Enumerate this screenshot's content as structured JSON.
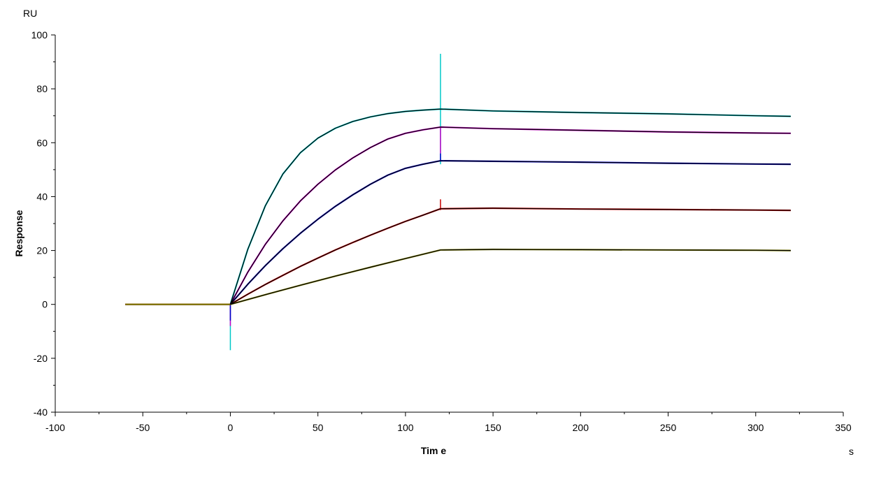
{
  "chart_data": {
    "type": "line",
    "title": "",
    "xlabel": "Tim e",
    "ylabel": "Response",
    "x_unit": "s",
    "y_unit": "RU",
    "xlim": [
      -100,
      350
    ],
    "ylim": [
      -40,
      100
    ],
    "x_ticks": [
      -100,
      -50,
      0,
      50,
      100,
      150,
      200,
      250,
      300,
      350
    ],
    "y_ticks": [
      -40,
      -20,
      0,
      20,
      40,
      60,
      80,
      100
    ],
    "x_minor_step": 25,
    "y_minor_step": 10,
    "grid": false,
    "legend": "none",
    "association_start": 0,
    "dissociation_start": 120,
    "series": [
      {
        "color": "#00c8c8",
        "x": [
          -60,
          0,
          10,
          20,
          30,
          40,
          50,
          60,
          70,
          80,
          90,
          100,
          110,
          120,
          150,
          200,
          250,
          300,
          320
        ],
        "y": [
          0,
          0,
          20.5,
          36.6,
          48.4,
          56.3,
          61.7,
          65.4,
          67.9,
          69.6,
          70.8,
          71.6,
          72.1,
          72.5,
          71.8,
          71.2,
          70.7,
          70.0,
          69.8
        ],
        "spikes": [
          {
            "x": 0,
            "min": -17,
            "max": 0
          },
          {
            "x": 120,
            "min": 52,
            "max": 93
          }
        ]
      },
      {
        "color": "#c800c8",
        "x": [
          -60,
          0,
          10,
          20,
          30,
          40,
          50,
          60,
          70,
          80,
          90,
          100,
          110,
          120,
          150,
          200,
          250,
          300,
          320
        ],
        "y": [
          0,
          0,
          12.0,
          22.3,
          31.0,
          38.4,
          44.6,
          49.9,
          54.4,
          58.2,
          61.4,
          63.5,
          64.8,
          65.8,
          65.2,
          64.6,
          64.0,
          63.6,
          63.5
        ],
        "spikes": [
          {
            "x": 0,
            "min": -8,
            "max": 0
          },
          {
            "x": 120,
            "min": 56,
            "max": 66
          }
        ]
      },
      {
        "color": "#0000c8",
        "x": [
          -60,
          0,
          10,
          20,
          30,
          40,
          50,
          60,
          70,
          80,
          90,
          100,
          110,
          120,
          150,
          200,
          250,
          300,
          320
        ],
        "y": [
          0,
          0,
          7.5,
          14.4,
          20.7,
          26.4,
          31.6,
          36.4,
          40.7,
          44.6,
          48.0,
          50.5,
          52.0,
          53.3,
          53.1,
          52.8,
          52.4,
          52.1,
          52.0
        ],
        "spikes": [
          {
            "x": 0,
            "min": -6,
            "max": 0
          },
          {
            "x": 120,
            "min": 53,
            "max": 56
          }
        ]
      },
      {
        "color": "#c80000",
        "x": [
          -60,
          0,
          10,
          20,
          30,
          40,
          50,
          60,
          70,
          80,
          90,
          100,
          110,
          120,
          150,
          200,
          250,
          300,
          320
        ],
        "y": [
          0,
          0,
          3.8,
          7.4,
          10.8,
          14.1,
          17.2,
          20.2,
          23.0,
          25.7,
          28.3,
          30.8,
          33.1,
          35.5,
          35.7,
          35.4,
          35.2,
          35.0,
          34.9
        ],
        "spikes": [
          {
            "x": 120,
            "min": 35,
            "max": 39
          }
        ]
      },
      {
        "color": "#808000",
        "x": [
          -60,
          0,
          20,
          40,
          60,
          80,
          100,
          120,
          150,
          200,
          250,
          300,
          320
        ],
        "y": [
          0,
          0,
          3.6,
          7.1,
          10.5,
          13.8,
          17.0,
          20.2,
          20.4,
          20.3,
          20.2,
          20.1,
          20.0
        ],
        "spikes": []
      }
    ],
    "fit_color": "#000000"
  }
}
